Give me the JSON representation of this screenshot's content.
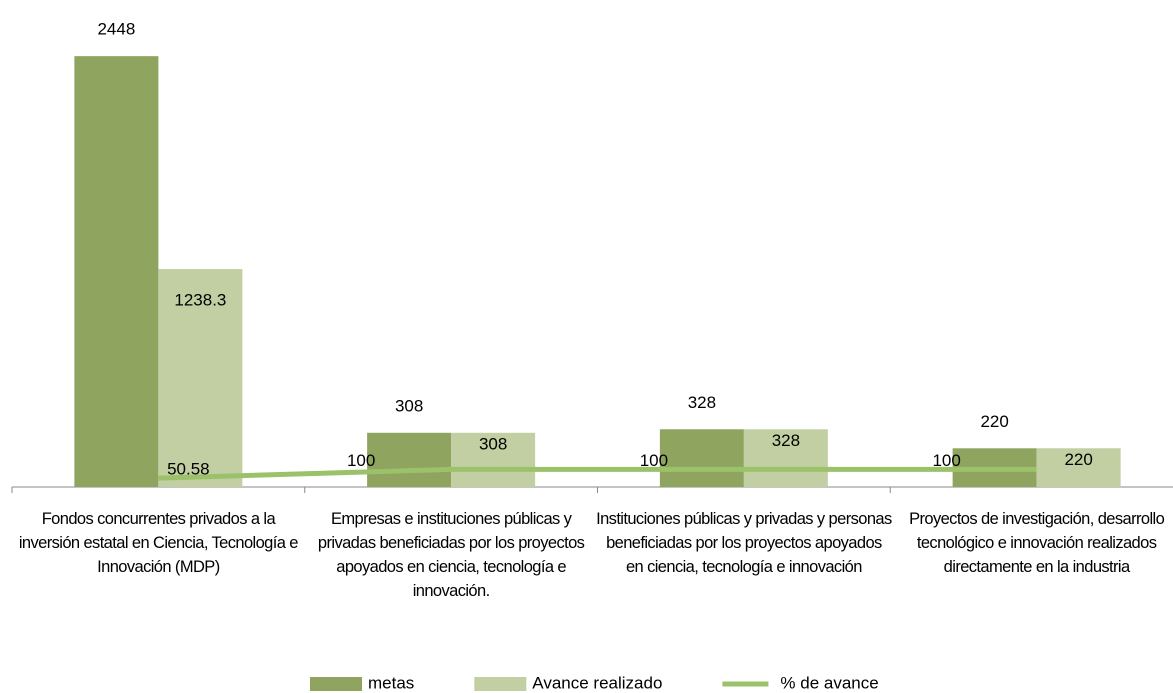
{
  "chart_data": {
    "type": "bar_line",
    "categories": [
      "Fondos concurrentes privados a la inversión estatal en Ciencia, Tecnología e Innovación (MDP)",
      "Empresas e instituciones públicas y privadas beneficiadas por los proyectos apoyados en ciencia, tecnología e innovación.",
      "Instituciones públicas y privadas y personas beneficiadas por los proyectos apoyados en ciencia, tecnología e innovación",
      "Proyectos de investigación, desarrollo tecnológico e innovación realizados directamente en la industria"
    ],
    "series": [
      {
        "name": "metas",
        "color": "#8ea45f",
        "type": "bar",
        "values": [
          2448,
          308,
          328,
          220
        ]
      },
      {
        "name": "Avance realizado",
        "color": "#c1cfa3",
        "type": "bar",
        "values": [
          1238.3,
          308,
          328,
          220
        ]
      },
      {
        "name": "% de avance",
        "color": "#9bc26a",
        "type": "line",
        "values": [
          50.58,
          100,
          100,
          100
        ]
      }
    ],
    "ylim": [
      0,
      2500
    ],
    "legend": "bottom"
  }
}
